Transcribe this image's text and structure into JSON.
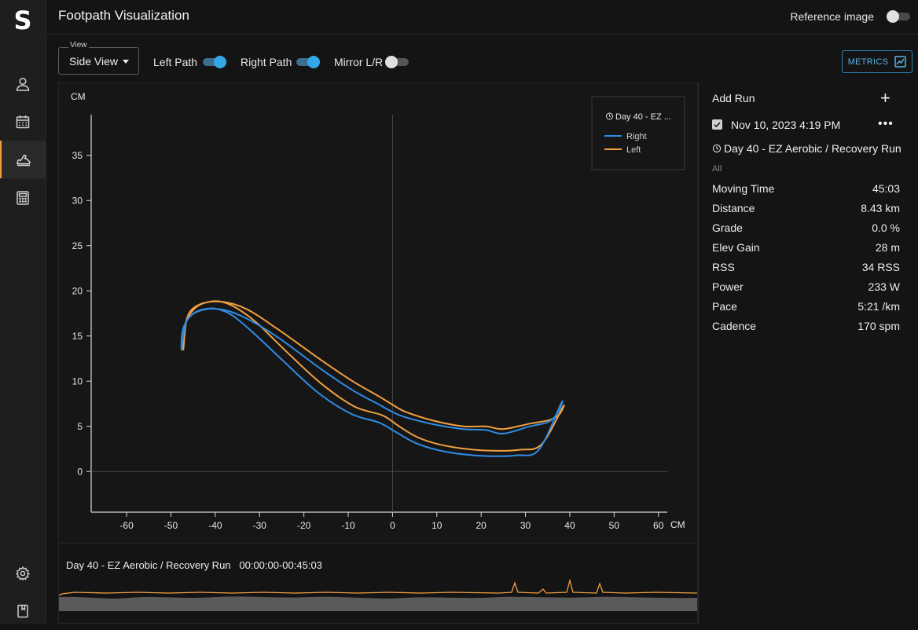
{
  "app": {
    "title": "Footpath Visualization",
    "reference_image_label": "Reference image",
    "reference_image_on": false
  },
  "sidebar": {
    "logo": "S",
    "items": [
      {
        "name": "profile",
        "icon": "person-icon",
        "active": false
      },
      {
        "name": "calendar",
        "icon": "calendar-icon",
        "active": false
      },
      {
        "name": "footpath",
        "icon": "running-shoe-icon",
        "active": true
      },
      {
        "name": "calculator",
        "icon": "calculator-icon",
        "active": false
      }
    ],
    "bottom_items": [
      {
        "name": "settings",
        "icon": "gear-icon"
      },
      {
        "name": "docs",
        "icon": "book-icon"
      }
    ]
  },
  "toolbar": {
    "view_legend": "View",
    "view_value": "Side View",
    "left_path_label": "Left Path",
    "left_path_on": true,
    "right_path_label": "Right Path",
    "right_path_on": true,
    "mirror_label": "Mirror L/R",
    "mirror_on": false,
    "metrics_label": "METRICS"
  },
  "colors": {
    "right": "#2f8ce6",
    "left": "#f0a040",
    "accent": "#34a8e6"
  },
  "chart_data": {
    "type": "line",
    "title": "",
    "xlabel": "CM",
    "ylabel": "CM",
    "xlim": [
      -68,
      62
    ],
    "ylim": [
      -4.5,
      39.5
    ],
    "xticks": [
      -60,
      -50,
      -40,
      -30,
      -20,
      -10,
      0,
      10,
      20,
      30,
      40,
      50,
      60
    ],
    "yticks": [
      0,
      5,
      10,
      15,
      20,
      25,
      30,
      35
    ],
    "grid": false,
    "zero_lines": true,
    "legend": {
      "title": "Day 40 - EZ ...",
      "placement": "top-right",
      "entries": [
        "Right",
        "Left"
      ]
    },
    "series": [
      {
        "name": "Right",
        "color": "#2f8ce6",
        "points": [
          [
            -47.6,
            13.5
          ],
          [
            -47.4,
            15.5
          ],
          [
            -46.4,
            16.7
          ],
          [
            -44.6,
            17.6
          ],
          [
            -42.2,
            18.0
          ],
          [
            -39.6,
            18.0
          ],
          [
            -36.2,
            17.3
          ],
          [
            -31.5,
            15.4
          ],
          [
            -25.0,
            12.4
          ],
          [
            -17.0,
            8.8
          ],
          [
            -9.4,
            6.4
          ],
          [
            -3.0,
            5.4
          ],
          [
            1.0,
            4.3
          ],
          [
            5.0,
            3.2
          ],
          [
            10.0,
            2.4
          ],
          [
            16.0,
            1.9
          ],
          [
            22.0,
            1.7
          ],
          [
            28.0,
            1.8
          ],
          [
            33.0,
            2.4
          ],
          [
            38.1,
            7.6
          ],
          [
            37.3,
            6.5
          ],
          [
            35.2,
            5.5
          ],
          [
            31.0,
            5.0
          ],
          [
            25.0,
            4.2
          ],
          [
            21.0,
            4.6
          ],
          [
            16.0,
            4.7
          ],
          [
            9.5,
            5.2
          ],
          [
            3.0,
            6.0
          ],
          [
            0.0,
            6.6
          ],
          [
            -3.0,
            7.4
          ],
          [
            -9.0,
            9.0
          ],
          [
            -16.0,
            11.3
          ],
          [
            -26.0,
            14.9
          ],
          [
            -34.0,
            17.2
          ],
          [
            -39.5,
            18.0
          ],
          [
            -44.0,
            17.7
          ],
          [
            -46.6,
            16.5
          ]
        ]
      },
      {
        "name": "Left",
        "color": "#f0a040",
        "points": [
          [
            -47.2,
            13.5
          ],
          [
            -47.1,
            15.6
          ],
          [
            -46.0,
            17.2
          ],
          [
            -44.0,
            18.3
          ],
          [
            -41.3,
            18.8
          ],
          [
            -38.6,
            18.8
          ],
          [
            -35.2,
            18.1
          ],
          [
            -30.5,
            16.4
          ],
          [
            -24.0,
            13.3
          ],
          [
            -16.0,
            9.7
          ],
          [
            -8.6,
            7.2
          ],
          [
            -2.2,
            6.2
          ],
          [
            1.5,
            5.0
          ],
          [
            5.6,
            3.8
          ],
          [
            10.6,
            3.0
          ],
          [
            16.6,
            2.5
          ],
          [
            22.6,
            2.3
          ],
          [
            28.6,
            2.4
          ],
          [
            33.6,
            3.0
          ],
          [
            38.5,
            7.2
          ],
          [
            37.6,
            6.3
          ],
          [
            35.4,
            5.7
          ],
          [
            31.0,
            5.3
          ],
          [
            25.0,
            4.7
          ],
          [
            21.0,
            5.0
          ],
          [
            16.0,
            5.0
          ],
          [
            9.5,
            5.6
          ],
          [
            3.0,
            6.6
          ],
          [
            0.0,
            7.4
          ],
          [
            -3.0,
            8.3
          ],
          [
            -9.0,
            10.0
          ],
          [
            -16.0,
            12.3
          ],
          [
            -26.0,
            15.8
          ],
          [
            -33.0,
            18.0
          ],
          [
            -38.5,
            18.8
          ],
          [
            -43.5,
            18.5
          ],
          [
            -46.3,
            17.1
          ]
        ]
      }
    ]
  },
  "run_panel": {
    "add_run_label": "Add Run",
    "add_icon": "plus-icon",
    "run_checked": true,
    "run_date": "Nov 10, 2023 4:19 PM",
    "run_name": "Day 40 - EZ Aerobic / Recovery Run",
    "filter_label": "All",
    "stats": [
      {
        "label": "Moving Time",
        "value": "45:03"
      },
      {
        "label": "Distance",
        "value": "8.43 km"
      },
      {
        "label": "Grade",
        "value": "0.0 %"
      },
      {
        "label": "Elev Gain",
        "value": "28 m"
      },
      {
        "label": "RSS",
        "value": "34 RSS"
      },
      {
        "label": "Power",
        "value": "233 W"
      },
      {
        "label": "Pace",
        "value": "5:21 /km"
      },
      {
        "label": "Cadence",
        "value": "170 spm"
      }
    ]
  },
  "timeline": {
    "run_name": "Day 40 - EZ Aerobic / Recovery Run",
    "time_range": "00:00:00-00:45:03"
  }
}
